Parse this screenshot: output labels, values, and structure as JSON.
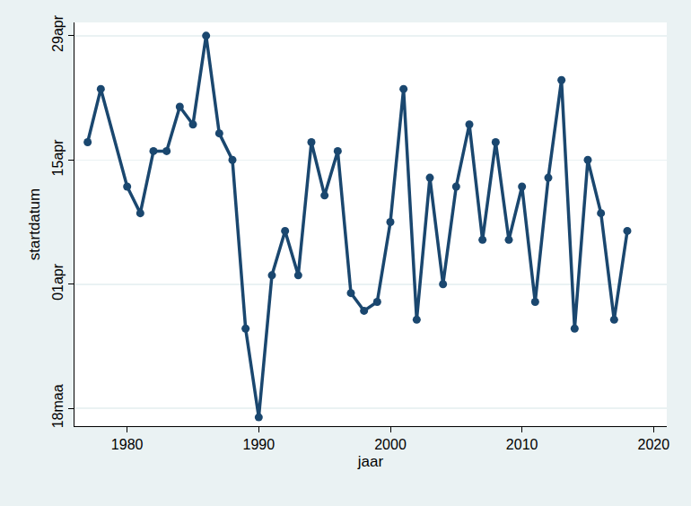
{
  "chart_data": {
    "type": "line",
    "x_label": "jaar",
    "y_label": "startdatum",
    "x": [
      1977,
      1978,
      1980,
      1981,
      1982,
      1983,
      1984,
      1985,
      1986,
      1987,
      1988,
      1989,
      1990,
      1991,
      1992,
      1993,
      1994,
      1995,
      1996,
      1997,
      1998,
      1999,
      2000,
      2001,
      2002,
      2003,
      2004,
      2005,
      2006,
      2007,
      2008,
      2009,
      2010,
      2011,
      2012,
      2013,
      2014,
      2015,
      2016,
      2017,
      2018
    ],
    "values": [
      107,
      113,
      102,
      99,
      106,
      106,
      111,
      109,
      119,
      108,
      105,
      86,
      76,
      92,
      97,
      92,
      107,
      101,
      106,
      90,
      88,
      89,
      98,
      113,
      87,
      103,
      91,
      102,
      109,
      96,
      107,
      96,
      102,
      89,
      103,
      114,
      86,
      105,
      99,
      87,
      97
    ],
    "color": "#1a476f",
    "marker": "circle",
    "line_style": "solid",
    "xlim": [
      1976,
      2021
    ],
    "xticks": [
      1980,
      1990,
      2000,
      2010,
      2020
    ],
    "ylim": [
      75,
      120.5
    ],
    "yticks": [
      {
        "value": 77,
        "label": "18maa"
      },
      {
        "value": 91,
        "label": "01apr"
      },
      {
        "value": 105,
        "label": "15apr"
      },
      {
        "value": 119,
        "label": "29apr"
      }
    ],
    "grid": true
  }
}
